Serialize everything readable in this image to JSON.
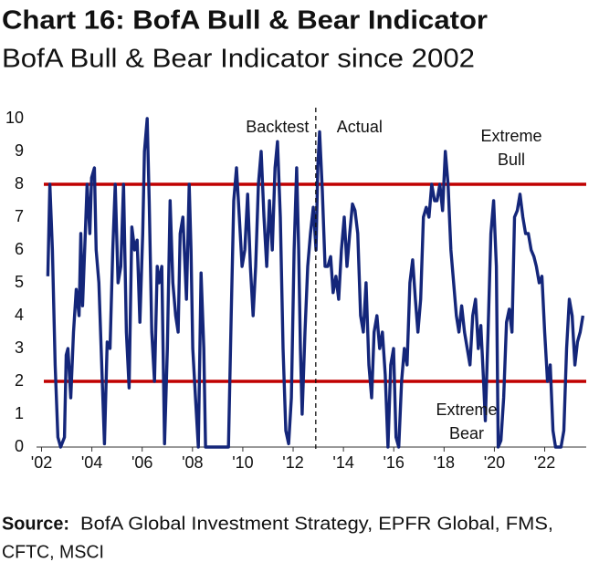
{
  "chart_data": {
    "type": "line",
    "title": "Chart 16: BofA Bull & Bear Indicator",
    "subtitle": "BofA Bull & Bear Indicator since 2002",
    "color": "#14267a",
    "x": [
      2002.25,
      2002.33,
      2002.43,
      2002.54,
      2002.65,
      2002.76,
      2002.91,
      2002.98,
      2003.05,
      2003.16,
      2003.27,
      2003.38,
      2003.49,
      2003.56,
      2003.63,
      2003.74,
      2003.81,
      2003.92,
      2003.99,
      2004.1,
      2004.17,
      2004.28,
      2004.39,
      2004.5,
      2004.61,
      2004.72,
      2004.83,
      2004.93,
      2005.04,
      2005.15,
      2005.26,
      2005.37,
      2005.48,
      2005.59,
      2005.7,
      2005.8,
      2005.91,
      2006.02,
      2006.09,
      2006.2,
      2006.28,
      2006.38,
      2006.49,
      2006.6,
      2006.67,
      2006.78,
      2006.89,
      2007.0,
      2007.11,
      2007.22,
      2007.33,
      2007.43,
      2007.51,
      2007.62,
      2007.76,
      2007.87,
      2007.94,
      2008.01,
      2008.12,
      2008.23,
      2008.34,
      2008.45,
      2008.52,
      2008.88,
      2009.25,
      2009.43,
      2009.54,
      2009.64,
      2009.75,
      2009.86,
      2009.97,
      2010.08,
      2010.19,
      2010.3,
      2010.41,
      2010.51,
      2010.62,
      2010.73,
      2010.84,
      2010.95,
      2011.06,
      2011.17,
      2011.28,
      2011.38,
      2011.49,
      2011.6,
      2011.71,
      2011.82,
      2011.93,
      2012.04,
      2012.14,
      2012.22,
      2012.29,
      2012.36,
      2012.47,
      2012.58,
      2012.69,
      2012.8,
      2012.91,
      2012.98,
      2013.05,
      2013.16,
      2013.27,
      2013.38,
      2013.49,
      2013.59,
      2013.7,
      2013.81,
      2013.92,
      2014.03,
      2014.14,
      2014.25,
      2014.36,
      2014.46,
      2014.57,
      2014.68,
      2014.79,
      2014.9,
      2015.01,
      2015.12,
      2015.22,
      2015.33,
      2015.44,
      2015.55,
      2015.66,
      2015.77,
      2015.88,
      2015.99,
      2016.09,
      2016.2,
      2016.31,
      2016.42,
      2016.53,
      2016.64,
      2016.75,
      2016.86,
      2016.96,
      2017.07,
      2017.18,
      2017.29,
      2017.4,
      2017.51,
      2017.62,
      2017.72,
      2017.83,
      2017.94,
      2018.05,
      2018.16,
      2018.27,
      2018.38,
      2018.49,
      2018.59,
      2018.7,
      2018.81,
      2018.92,
      2019.03,
      2019.14,
      2019.25,
      2019.36,
      2019.46,
      2019.57,
      2019.64,
      2019.75,
      2019.86,
      2019.97,
      2020.08,
      2020.15,
      2020.26,
      2020.37,
      2020.48,
      2020.59,
      2020.7,
      2020.8,
      2020.91,
      2021.02,
      2021.13,
      2021.24,
      2021.35,
      2021.46,
      2021.57,
      2021.67,
      2021.78,
      2021.89,
      2022.0,
      2022.11,
      2022.22,
      2022.33,
      2022.43,
      2022.65,
      2022.76,
      2022.87,
      2022.98,
      2023.09,
      2023.2,
      2023.3,
      2023.41,
      2023.52
    ],
    "values": [
      5.2,
      8.0,
      6.0,
      2.5,
      0.3,
      0,
      0.3,
      2.8,
      3.0,
      1.5,
      3.5,
      4.8,
      4.0,
      6.5,
      4.3,
      6.5,
      8.0,
      6.5,
      8.2,
      8.5,
      6.0,
      5.0,
      2.5,
      0.1,
      3.2,
      3.0,
      6.0,
      8.0,
      5.0,
      5.5,
      8.0,
      3.5,
      1.8,
      6.7,
      6.0,
      6.3,
      3.8,
      6.5,
      9.0,
      10.0,
      7.5,
      3.5,
      2.0,
      5.5,
      5.0,
      5.5,
      0.1,
      3.0,
      7.5,
      5.0,
      4.0,
      3.5,
      6.5,
      7.0,
      4.5,
      8.0,
      6.0,
      3.0,
      1.5,
      0,
      5.3,
      3.0,
      0,
      0,
      0,
      0,
      4.0,
      7.5,
      8.5,
      7.0,
      5.5,
      6.0,
      7.7,
      5.5,
      4.0,
      5.5,
      8.0,
      9.0,
      7.0,
      5.5,
      7.5,
      6.0,
      8.5,
      9.3,
      7.0,
      3.0,
      0.5,
      0.1,
      1.5,
      6.0,
      8.5,
      6.0,
      3.0,
      1.0,
      3.5,
      5.5,
      6.5,
      7.3,
      6.0,
      8.5,
      9.6,
      7.8,
      5.5,
      5.5,
      5.8,
      4.7,
      5.2,
      4.5,
      6.0,
      7.0,
      5.5,
      6.5,
      7.4,
      7.2,
      6.5,
      4.0,
      3.5,
      5.0,
      2.5,
      1.5,
      3.5,
      4.0,
      3.0,
      3.5,
      2.2,
      0,
      2.5,
      3.0,
      0.3,
      0,
      2.0,
      3.0,
      2.5,
      5.0,
      5.7,
      4.5,
      3.5,
      4.5,
      7.0,
      7.3,
      7.0,
      8.0,
      7.5,
      7.5,
      8.0,
      7.2,
      9.0,
      8.0,
      6.0,
      5.0,
      4.0,
      3.5,
      4.3,
      3.5,
      3.0,
      2.5,
      4.0,
      4.5,
      3.0,
      3.7,
      2.0,
      0.8,
      3.5,
      6.5,
      7.5,
      5.5,
      0,
      0.2,
      1.5,
      3.8,
      4.2,
      3.5,
      7.0,
      7.2,
      7.7,
      7.0,
      6.5,
      6.5,
      6.0,
      5.8,
      5.5,
      5.0,
      5.2,
      3.5,
      2.0,
      2.5,
      0.5,
      0,
      0,
      0.5,
      3.0,
      4.5,
      4.0,
      2.5,
      3.2,
      3.5,
      4.0
    ],
    "xlim": [
      2001.8,
      2023.65
    ],
    "ylim": [
      0,
      10
    ],
    "yticks": [
      0,
      1,
      2,
      3,
      4,
      5,
      6,
      7,
      8,
      9,
      10
    ],
    "xticks": [
      {
        "value": 2002,
        "label": "'02"
      },
      {
        "value": 2004,
        "label": "'04"
      },
      {
        "value": 2006,
        "label": "'06"
      },
      {
        "value": 2008,
        "label": "'08"
      },
      {
        "value": 2010,
        "label": "'10"
      },
      {
        "value": 2012,
        "label": "'12"
      },
      {
        "value": 2014,
        "label": "'14"
      },
      {
        "value": 2016,
        "label": "'16"
      },
      {
        "value": 2018,
        "label": "'18"
      },
      {
        "value": 2020,
        "label": "'20"
      },
      {
        "value": 2022,
        "label": "'22"
      }
    ],
    "reference_lines": [
      {
        "value": 8,
        "color": "#c00000"
      },
      {
        "value": 2,
        "color": "#c00000"
      }
    ],
    "divider_x": 2012.9,
    "annotations": [
      {
        "lines": [
          "Backtest"
        ]
      },
      {
        "lines": [
          "Actual"
        ]
      },
      {
        "lines": [
          "Extreme",
          "Bull"
        ]
      },
      {
        "lines": [
          "Extreme",
          "Bear"
        ]
      }
    ],
    "source": {
      "label": "Source:",
      "lines": [
        "BofA Global Investment Strategy, EPFR Global, FMS,",
        "CFTC, MSCI"
      ]
    }
  }
}
